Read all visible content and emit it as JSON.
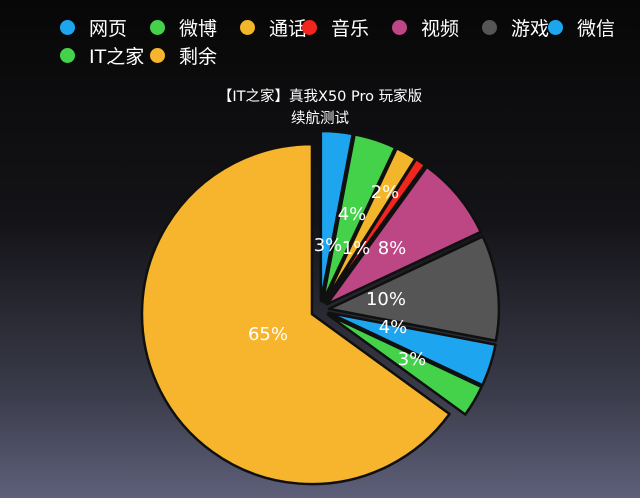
{
  "chart_data": {
    "type": "pie",
    "title_line1": "【IT之家】真我X50 Pro 玩家版",
    "title_line2": "续航测试",
    "legend_position": "top",
    "slices": [
      {
        "name": "网页",
        "value": 3,
        "label": "3%",
        "color": "#1ea5f0"
      },
      {
        "name": "微博",
        "value": 4,
        "label": "4%",
        "color": "#45d24b"
      },
      {
        "name": "通话",
        "value": 2,
        "label": "2%",
        "color": "#f3b52a"
      },
      {
        "name": "音乐",
        "value": 1,
        "label": "1%",
        "color": "#f2261c"
      },
      {
        "name": "视频",
        "value": 8,
        "label": "8%",
        "color": "#bd4785"
      },
      {
        "name": "游戏",
        "value": 10,
        "label": "10%",
        "color": "#555555"
      },
      {
        "name": "微信",
        "value": 4,
        "label": "4%",
        "color": "#1ea5f0"
      },
      {
        "name": "IT之家",
        "value": 3,
        "label": "3%",
        "color": "#45d24b"
      },
      {
        "name": "剩余",
        "value": 65,
        "label": "65%",
        "color": "#f6b52c"
      }
    ]
  }
}
